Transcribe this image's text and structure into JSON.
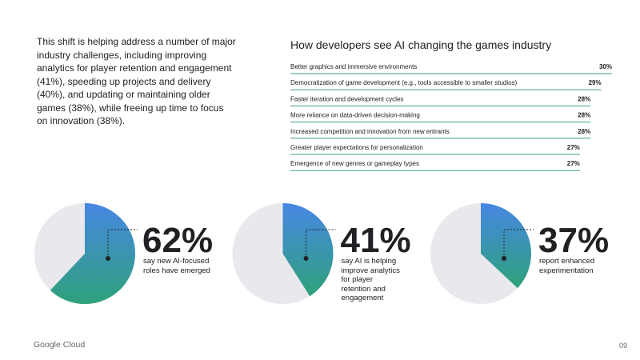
{
  "intro": "This shift is helping address a number of major industry challenges, including improving analytics for player retention and engagement (41%), speeding up projects and delivery (40%), and updating or maintaining older games (38%), while freeing up time to focus on innovation (38%).",
  "chart_data": [
    {
      "type": "bar",
      "title": "How developers see AI changing the games industry",
      "categories": [
        "Better graphics and immersive environments",
        "Democratization of game development (e.g., tools accessible to smaller studios)",
        "Faster iteration and development cycles",
        "More reliance on data-driven decision-making",
        "Increased competition and innovation from new entrants",
        "Greater player expectations for personalization",
        "Emergence of new genres or gameplay types"
      ],
      "values": [
        30,
        29,
        28,
        28,
        28,
        27,
        27
      ],
      "value_labels": [
        "30%",
        "29%",
        "28%",
        "28%",
        "28%",
        "27%",
        "27%"
      ],
      "color": "#3a9e82"
    },
    {
      "type": "pie",
      "values": [
        62
      ],
      "value_labels": [
        "62%"
      ],
      "caption": "say new AI-focused roles have emerged",
      "color": "#e9e9ed"
    },
    {
      "type": "pie",
      "values": [
        41
      ],
      "value_labels": [
        "41%"
      ],
      "caption": "say AI is helping improve analytics for player retention and engagement",
      "color": "#e9e9ed"
    },
    {
      "type": "pie",
      "values": [
        37
      ],
      "value_labels": [
        "37%"
      ],
      "caption": "report enhanced experimentation",
      "color": "#e9e9ed"
    }
  ],
  "footer": {
    "brand": "Google Cloud",
    "page": "09"
  }
}
